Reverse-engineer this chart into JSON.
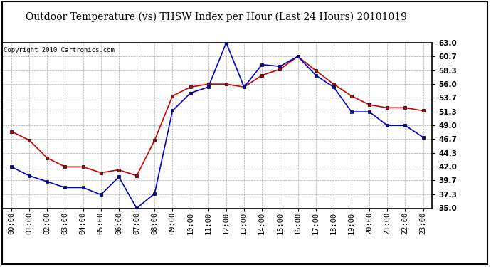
{
  "title": "Outdoor Temperature (vs) THSW Index per Hour (Last 24 Hours) 20101019",
  "copyright": "Copyright 2010 Cartronics.com",
  "hours": [
    0,
    1,
    2,
    3,
    4,
    5,
    6,
    7,
    8,
    9,
    10,
    11,
    12,
    13,
    14,
    15,
    16,
    17,
    18,
    19,
    20,
    21,
    22,
    23
  ],
  "hour_labels": [
    "00:00",
    "01:00",
    "02:00",
    "03:00",
    "04:00",
    "05:00",
    "06:00",
    "07:00",
    "08:00",
    "09:00",
    "10:00",
    "11:00",
    "12:00",
    "13:00",
    "14:00",
    "15:00",
    "16:00",
    "17:00",
    "18:00",
    "19:00",
    "20:00",
    "21:00",
    "22:00",
    "23:00"
  ],
  "temp": [
    48.0,
    46.5,
    43.5,
    42.0,
    42.0,
    41.0,
    41.5,
    40.5,
    46.5,
    54.0,
    55.5,
    56.0,
    56.0,
    55.5,
    57.5,
    58.5,
    60.7,
    58.3,
    56.0,
    54.0,
    52.5,
    52.0,
    52.0,
    51.5
  ],
  "thsw": [
    42.0,
    40.5,
    39.5,
    38.5,
    38.5,
    37.3,
    40.3,
    35.0,
    37.5,
    51.5,
    54.5,
    55.5,
    63.0,
    55.5,
    59.3,
    59.0,
    60.7,
    57.5,
    55.5,
    51.3,
    51.3,
    49.0,
    49.0,
    47.0
  ],
  "ylim": [
    35.0,
    63.0
  ],
  "yticks": [
    35.0,
    37.3,
    39.7,
    42.0,
    44.3,
    46.7,
    49.0,
    51.3,
    53.7,
    56.0,
    58.3,
    60.7,
    63.0
  ],
  "temp_color": "#cc0000",
  "thsw_color": "#0000cc",
  "bg_color": "#ffffff",
  "plot_bg_color": "#e8e8e8",
  "grid_color": "#aaaaaa",
  "title_fontsize": 10,
  "copyright_fontsize": 6.5,
  "tick_fontsize": 7.5
}
